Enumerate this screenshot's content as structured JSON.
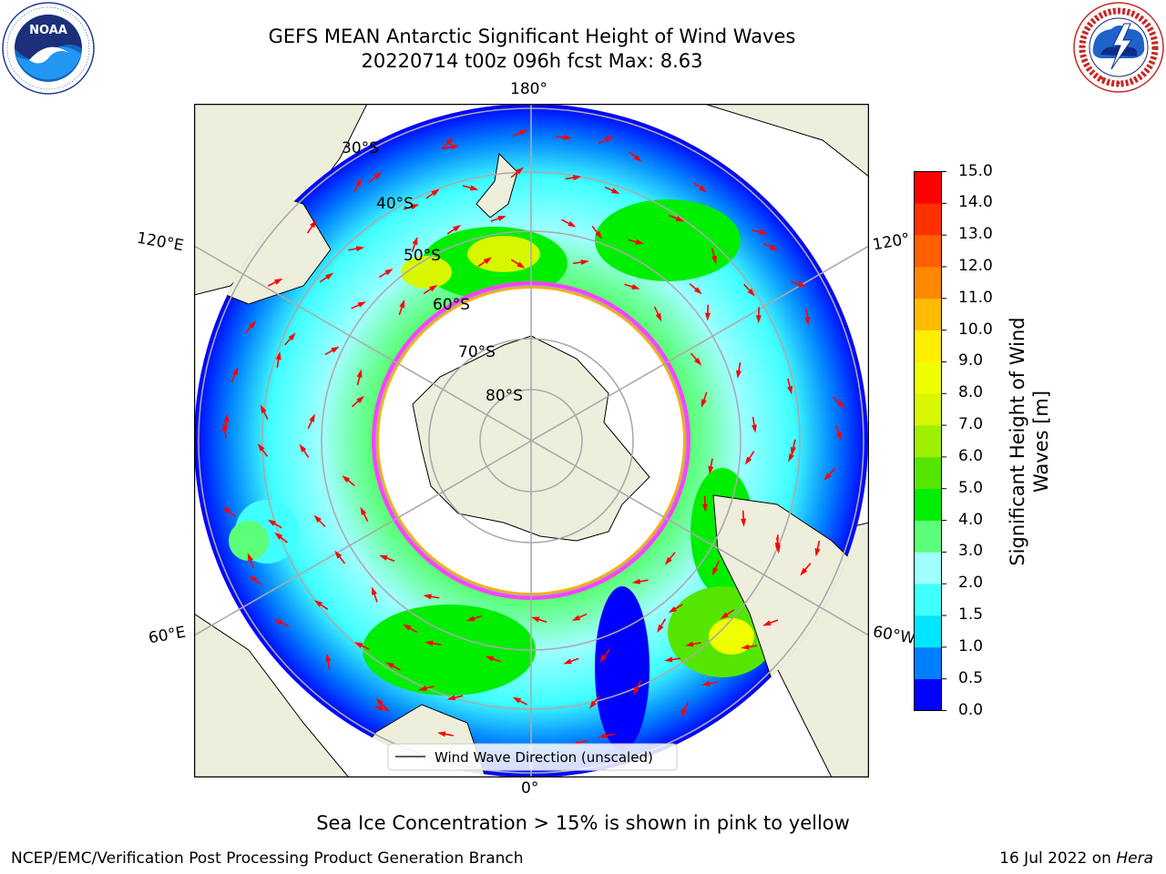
{
  "header": {
    "title_line1": "GEFS MEAN Antarctic Significant Height of Wind Waves",
    "title_line2": "20220714 t00z 096h fcst   Max: 8.63"
  },
  "logos": {
    "noaa": {
      "text": "NOAA",
      "ring_text": "NATIONAL OCEANIC AND ATMOSPHERIC ADMINISTRATION · U.S. DEPARTMENT OF COMMERCE"
    },
    "nws": {
      "ring_text": "NATIONAL WEATHER SERVICE"
    }
  },
  "map": {
    "projection": "south-polar-stereographic",
    "longitude_labels": {
      "top": "180°",
      "bottom": "0°",
      "upper_left": "120°E",
      "lower_left": "60°E",
      "upper_right": "120°",
      "lower_right": "60°W"
    },
    "latitude_labels": [
      "30°S",
      "40°S",
      "50°S",
      "60°S",
      "70°S",
      "80°S"
    ],
    "legend_label": "Wind Wave Direction (unscaled)",
    "arrow_color": "#ff0000",
    "sea_ice_colors": [
      "#ff40ff",
      "#ffb000",
      "#ffff40"
    ],
    "land_color": "#eeeedd"
  },
  "colorbar": {
    "label": "Significant Height of Wind Waves [m]",
    "ticks": [
      "0.0",
      "0.5",
      "1.0",
      "1.5",
      "2.0",
      "3.0",
      "4.0",
      "5.0",
      "6.0",
      "7.0",
      "8.0",
      "9.0",
      "10.0",
      "11.0",
      "12.0",
      "13.0",
      "14.0",
      "15.0"
    ],
    "colors": [
      "#0000ff",
      "#0080ff",
      "#00e6ff",
      "#40ffff",
      "#a0ffff",
      "#5cff7a",
      "#00ee00",
      "#55e600",
      "#a0ee00",
      "#d7f700",
      "#f0ff00",
      "#ffee00",
      "#ffbb00",
      "#ff8800",
      "#ff6000",
      "#ff3000",
      "#ff0000"
    ]
  },
  "notes": {
    "sea_ice": "Sea Ice Concentration > 15% is shown in pink to yellow"
  },
  "footer": {
    "producer": "NCEP/EMC/Verification Post Processing Product Generation Branch",
    "date": "16 Jul 2022 on",
    "host": "Hera"
  }
}
